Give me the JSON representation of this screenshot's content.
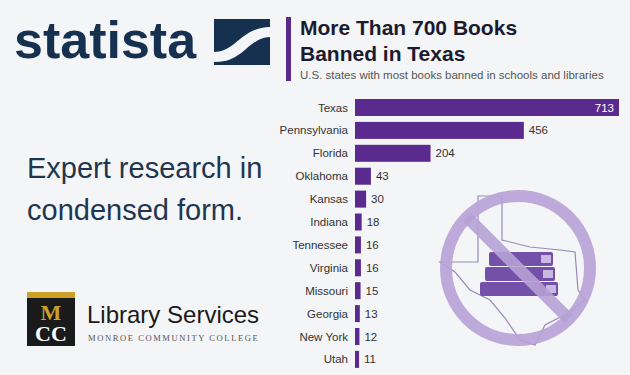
{
  "chart_data": {
    "type": "bar",
    "orientation": "horizontal",
    "title": "More Than 700 Books Banned in Texas",
    "subtitle": "U.S. states with most books banned in schools and libraries",
    "categories": [
      "Texas",
      "Pennsylvania",
      "Florida",
      "Oklahoma",
      "Kansas",
      "Indiana",
      "Tennessee",
      "Virginia",
      "Missouri",
      "Georgia",
      "New York",
      "Utah"
    ],
    "values": [
      713,
      456,
      204,
      43,
      30,
      18,
      16,
      16,
      15,
      13,
      12,
      11
    ],
    "color": "#5b2a8e",
    "xlim": [
      0,
      713
    ],
    "data_labels": true,
    "tick_labels": "y",
    "grid": false
  },
  "branding": {
    "logo": "statista",
    "tagline": [
      "Expert research in",
      "condensed form."
    ],
    "library": {
      "logo": "MCC",
      "name": "Library Services",
      "college": "MONROE COMMUNITY COLLEGE"
    }
  }
}
